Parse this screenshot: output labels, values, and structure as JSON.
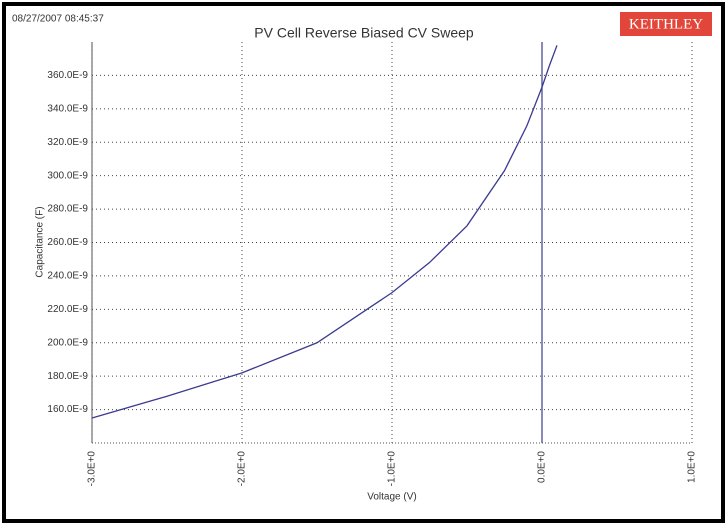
{
  "chart_data": {
    "type": "line",
    "timestamp": "08/27/2007 08:45:37",
    "logo": "KEITHLEY",
    "title": "PV Cell Reverse Biased CV Sweep",
    "x_label": "Voltage (V)",
    "y_label": "Capacitance (F)",
    "x": [
      -3,
      -2.5,
      -2,
      -1.5,
      -1,
      -0.75,
      -0.5,
      -0.25,
      -0.1,
      0,
      0.05,
      0.1
    ],
    "series": [
      {
        "color": "#3b3b8f",
        "values": [
          1.55e-07,
          1.68e-07,
          1.82e-07,
          2e-07,
          2.3e-07,
          2.48e-07,
          2.7e-07,
          3.03e-07,
          3.3e-07,
          3.53e-07,
          3.66e-07,
          3.78e-07
        ]
      }
    ],
    "xlim": [
      -3,
      1
    ],
    "xticks": [
      {
        "value": -3,
        "label": "-3.0E+0"
      },
      {
        "value": -2,
        "label": "-2.0E+0"
      },
      {
        "value": -1,
        "label": "-1.0E+0"
      },
      {
        "value": 0,
        "label": "0.0E+0"
      },
      {
        "value": 1,
        "label": "1.0E+0"
      }
    ],
    "ylim": [
      1.4e-07,
      3.8e-07
    ],
    "yticks": [
      {
        "value": 1.6e-07,
        "label": "160.0E-9"
      },
      {
        "value": 1.8e-07,
        "label": "180.0E-9"
      },
      {
        "value": 2e-07,
        "label": "200.0E-9"
      },
      {
        "value": 2.2e-07,
        "label": "220.0E-9"
      },
      {
        "value": 2.4e-07,
        "label": "240.0E-9"
      },
      {
        "value": 2.6e-07,
        "label": "260.0E-9"
      },
      {
        "value": 2.8e-07,
        "label": "280.0E-9"
      },
      {
        "value": 3e-07,
        "label": "300.0E-9"
      },
      {
        "value": 3.2e-07,
        "label": "320.0E-9"
      },
      {
        "value": 3.4e-07,
        "label": "340.0E-9"
      },
      {
        "value": 3.6e-07,
        "label": "360.0E-9"
      }
    ],
    "grid": true
  }
}
